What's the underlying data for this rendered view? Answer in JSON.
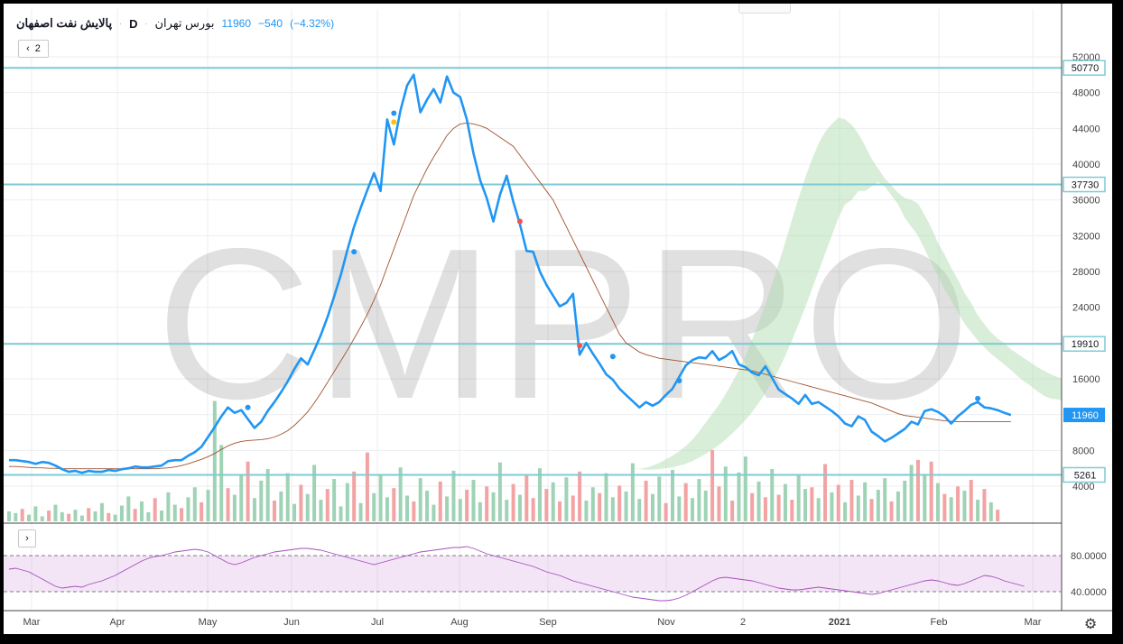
{
  "header": {
    "symbol": "پالایش نفت اصفهان",
    "exchange": "بورس تهران",
    "interval": "D",
    "last": "11960",
    "change": "−540",
    "change_pct": "(−4.32%)",
    "collapse_count": "2"
  },
  "watermark": "CMPRO",
  "colors": {
    "price": "#2196f3",
    "hline": "#7ecbd4",
    "ma": "#a0522d",
    "rsi": "#a64dbf",
    "cloud_up": "#a9d9a9",
    "cloud_down": "#ffb3b3",
    "vol_up": "#9fd3b5",
    "vol_down": "#f2a3a3"
  },
  "chart_data": {
    "type": "line",
    "price_scale": [
      4000,
      8000,
      12000,
      16000,
      20000,
      24000,
      28000,
      32000,
      36000,
      40000,
      44000,
      48000,
      52000
    ],
    "x_labels": [
      "Mar",
      "Apr",
      "May",
      "Jun",
      "Jul",
      "Aug",
      "Sep",
      "Nov",
      "2",
      "2021",
      "Feb",
      "Mar"
    ],
    "horizontal_levels": [
      50770,
      37730,
      19910,
      5261
    ],
    "last_price": 11960,
    "rsi_levels": [
      80,
      40
    ],
    "rsi_level_labels": [
      "80.0000",
      "40.0000"
    ],
    "series": [
      {
        "name": "price",
        "values": [
          6900,
          6900,
          6800,
          6700,
          6500,
          6700,
          6600,
          6300,
          5900,
          5600,
          5700,
          5500,
          5700,
          5600,
          5600,
          5800,
          5700,
          5900,
          6000,
          6200,
          6100,
          6100,
          6200,
          6300,
          6800,
          6900,
          6900,
          7400,
          7800,
          8400,
          9500,
          10600,
          11800,
          12800,
          12200,
          12500,
          11500,
          10500,
          11200,
          12400,
          13400,
          14500,
          15700,
          17100,
          18300,
          17600,
          19200,
          20900,
          22900,
          25200,
          27600,
          30400,
          33000,
          35100,
          37100,
          39000,
          37000,
          45000,
          42200,
          46000,
          48800,
          50000,
          45800,
          47200,
          48400,
          46900,
          49800,
          48000,
          47500,
          45000,
          41200,
          38200,
          36200,
          33600,
          36600,
          38700,
          35800,
          33300,
          30300,
          30200,
          28000,
          26500,
          25300,
          24100,
          24500,
          25500,
          18700,
          20000,
          18800,
          17700,
          16500,
          15900,
          14900,
          14200,
          13500,
          12800,
          13400,
          13000,
          13400,
          14200,
          14900,
          16200,
          17500,
          18100,
          18400,
          18300,
          19100,
          18100,
          18500,
          19100,
          17600,
          17300,
          16700,
          16400,
          17400,
          16100,
          14800,
          14300,
          13800,
          13200,
          14200,
          13200,
          13400,
          12900,
          12400,
          11800,
          11000,
          10700,
          11800,
          11400,
          10100,
          9600,
          9000,
          9400,
          9900,
          10400,
          11200,
          10900,
          12400,
          12600,
          12300,
          11800,
          11000,
          11800,
          12400,
          13100,
          13400,
          12800,
          12700,
          12500,
          12200,
          11960
        ]
      },
      {
        "name": "ma",
        "values": [
          6200,
          6200,
          6150,
          6100,
          6050,
          6050,
          6000,
          6000,
          5950,
          5950,
          5950,
          5950,
          5950,
          5950,
          5950,
          5950,
          5950,
          5950,
          5950,
          5950,
          5950,
          5950,
          5950,
          6000,
          6050,
          6150,
          6300,
          6500,
          6750,
          7000,
          7300,
          7650,
          8100,
          8500,
          8800,
          9000,
          9100,
          9150,
          9200,
          9300,
          9500,
          9800,
          10200,
          10800,
          11500,
          12300,
          13300,
          14400,
          15600,
          16800,
          18000,
          19200,
          20500,
          21800,
          23200,
          24800,
          26500,
          28500,
          30500,
          32500,
          34500,
          36500,
          38000,
          39500,
          40800,
          42000,
          43200,
          44000,
          44500,
          44600,
          44500,
          44300,
          44000,
          43500,
          43000,
          42500,
          42000,
          41000,
          40000,
          39000,
          38000,
          37000,
          36000,
          34500,
          33000,
          31500,
          30000,
          28500,
          27000,
          25500,
          24000,
          22500,
          21000,
          20000,
          19500,
          19000,
          18700,
          18500,
          18300,
          18200,
          18100,
          18000,
          17900,
          17800,
          17700,
          17600,
          17500,
          17400,
          17300,
          17200,
          17100,
          17000,
          16900,
          16700,
          16500,
          16300,
          16100,
          15900,
          15700,
          15500,
          15300,
          15100,
          14900,
          14700,
          14500,
          14300,
          14100,
          13900,
          13700,
          13500,
          13300,
          13000,
          12700,
          12400,
          12100,
          11900,
          11800,
          11700,
          11600,
          11500,
          11400,
          11300,
          11250,
          11200,
          11200,
          11200,
          11200,
          11200,
          11200,
          11200,
          11200,
          11200
        ]
      },
      {
        "name": "rsi",
        "values": [
          65,
          66,
          64,
          62,
          58,
          54,
          50,
          46,
          44,
          45,
          46,
          45,
          48,
          50,
          52,
          55,
          58,
          62,
          66,
          70,
          74,
          77,
          79,
          80,
          82,
          84,
          85,
          86,
          87,
          86,
          84,
          80,
          76,
          72,
          70,
          72,
          75,
          78,
          80,
          82,
          84,
          85,
          86,
          87,
          88,
          88,
          87,
          86,
          84,
          82,
          80,
          78,
          76,
          74,
          72,
          70,
          72,
          74,
          76,
          78,
          80,
          82,
          84,
          85,
          86,
          87,
          88,
          89,
          89,
          90,
          88,
          85,
          82,
          80,
          78,
          76,
          74,
          72,
          70,
          68,
          65,
          62,
          60,
          58,
          55,
          52,
          50,
          48,
          46,
          44,
          42,
          40,
          38,
          36,
          34,
          33,
          32,
          31,
          30,
          30,
          31,
          33,
          36,
          40,
          44,
          48,
          52,
          55,
          56,
          55,
          54,
          53,
          52,
          50,
          48,
          46,
          44,
          43,
          42,
          42,
          43,
          44,
          45,
          44,
          43,
          42,
          41,
          40,
          39,
          38,
          37,
          38,
          40,
          42,
          44,
          46,
          48,
          50,
          52,
          53,
          52,
          50,
          48,
          47,
          49,
          52,
          55,
          58,
          57,
          55,
          52,
          50,
          48,
          46
        ]
      }
    ],
    "volume": [
      [
        1.2,
        1
      ],
      [
        1.0,
        1
      ],
      [
        1.5,
        0
      ],
      [
        0.8,
        1
      ],
      [
        1.8,
        1
      ],
      [
        0.6,
        1
      ],
      [
        1.3,
        0
      ],
      [
        2.0,
        1
      ],
      [
        1.1,
        1
      ],
      [
        0.9,
        0
      ],
      [
        1.4,
        1
      ],
      [
        0.7,
        1
      ],
      [
        1.6,
        0
      ],
      [
        1.2,
        1
      ],
      [
        2.2,
        1
      ],
      [
        1.0,
        0
      ],
      [
        0.8,
        1
      ],
      [
        1.9,
        1
      ],
      [
        3.0,
        1
      ],
      [
        1.5,
        0
      ],
      [
        2.4,
        1
      ],
      [
        1.1,
        1
      ],
      [
        2.8,
        0
      ],
      [
        1.3,
        1
      ],
      [
        3.5,
        1
      ],
      [
        2.0,
        1
      ],
      [
        1.6,
        0
      ],
      [
        2.9,
        1
      ],
      [
        4.1,
        1
      ],
      [
        2.3,
        0
      ],
      [
        3.8,
        1
      ],
      [
        14.5,
        1
      ],
      [
        9.2,
        1
      ],
      [
        4.0,
        0
      ],
      [
        3.2,
        1
      ],
      [
        5.5,
        1
      ],
      [
        7.2,
        0
      ],
      [
        2.8,
        1
      ],
      [
        4.9,
        1
      ],
      [
        6.3,
        1
      ],
      [
        2.5,
        0
      ],
      [
        3.6,
        1
      ],
      [
        5.8,
        1
      ],
      [
        2.1,
        1
      ],
      [
        4.4,
        0
      ],
      [
        3.3,
        1
      ],
      [
        6.8,
        1
      ],
      [
        2.6,
        1
      ],
      [
        3.9,
        0
      ],
      [
        5.1,
        1
      ],
      [
        1.8,
        1
      ],
      [
        4.6,
        1
      ],
      [
        6.0,
        0
      ],
      [
        2.2,
        1
      ],
      [
        8.3,
        0
      ],
      [
        3.4,
        1
      ],
      [
        5.7,
        1
      ],
      [
        2.9,
        1
      ],
      [
        4.0,
        0
      ],
      [
        6.5,
        1
      ],
      [
        3.1,
        1
      ],
      [
        2.4,
        0
      ],
      [
        5.2,
        1
      ],
      [
        3.7,
        1
      ],
      [
        2.0,
        1
      ],
      [
        4.8,
        0
      ],
      [
        3.0,
        1
      ],
      [
        6.1,
        1
      ],
      [
        2.7,
        1
      ],
      [
        3.8,
        0
      ],
      [
        5.0,
        1
      ],
      [
        2.3,
        1
      ],
      [
        4.2,
        0
      ],
      [
        3.5,
        1
      ],
      [
        7.1,
        1
      ],
      [
        2.6,
        1
      ],
      [
        4.5,
        0
      ],
      [
        3.2,
        1
      ],
      [
        5.6,
        0
      ],
      [
        2.8,
        0
      ],
      [
        6.4,
        1
      ],
      [
        3.9,
        0
      ],
      [
        4.7,
        1
      ],
      [
        2.4,
        0
      ],
      [
        5.3,
        1
      ],
      [
        3.1,
        0
      ],
      [
        6.0,
        0
      ],
      [
        2.5,
        1
      ],
      [
        4.1,
        1
      ],
      [
        3.4,
        0
      ],
      [
        5.8,
        1
      ],
      [
        2.9,
        1
      ],
      [
        4.3,
        0
      ],
      [
        3.6,
        1
      ],
      [
        7.0,
        1
      ],
      [
        2.7,
        1
      ],
      [
        4.9,
        0
      ],
      [
        3.3,
        1
      ],
      [
        5.4,
        1
      ],
      [
        2.2,
        0
      ],
      [
        6.2,
        1
      ],
      [
        3.0,
        1
      ],
      [
        4.6,
        0
      ],
      [
        2.8,
        1
      ],
      [
        5.1,
        1
      ],
      [
        3.7,
        1
      ],
      [
        8.6,
        0
      ],
      [
        4.2,
        0
      ],
      [
        6.6,
        1
      ],
      [
        2.5,
        0
      ],
      [
        5.9,
        1
      ],
      [
        7.8,
        1
      ],
      [
        3.4,
        0
      ],
      [
        4.8,
        1
      ],
      [
        2.9,
        0
      ],
      [
        6.3,
        1
      ],
      [
        3.2,
        0
      ],
      [
        4.5,
        1
      ],
      [
        2.6,
        0
      ],
      [
        5.7,
        1
      ],
      [
        3.9,
        1
      ],
      [
        4.1,
        0
      ],
      [
        2.8,
        1
      ],
      [
        6.9,
        0
      ],
      [
        3.5,
        1
      ],
      [
        4.4,
        0
      ],
      [
        2.3,
        1
      ],
      [
        5.0,
        0
      ],
      [
        3.1,
        1
      ],
      [
        4.7,
        1
      ],
      [
        2.7,
        0
      ],
      [
        3.8,
        1
      ],
      [
        5.2,
        1
      ],
      [
        2.4,
        0
      ],
      [
        3.6,
        1
      ],
      [
        4.9,
        1
      ],
      [
        6.8,
        1
      ],
      [
        7.4,
        0
      ],
      [
        5.5,
        1
      ],
      [
        7.2,
        0
      ],
      [
        4.6,
        1
      ],
      [
        3.3,
        0
      ],
      [
        2.9,
        1
      ],
      [
        4.2,
        0
      ],
      [
        3.7,
        1
      ],
      [
        5.0,
        0
      ],
      [
        2.6,
        1
      ],
      [
        3.9,
        0
      ],
      [
        2.3,
        1
      ],
      [
        1.4,
        0
      ]
    ],
    "cloud": {
      "start": 89,
      "top": [
        5950,
        5950,
        5950,
        5950,
        5950,
        5950,
        5950,
        6050,
        6300,
        6600,
        7000,
        7400,
        7900,
        8500,
        9200,
        10100,
        11100,
        12100,
        13100,
        14300,
        15600,
        17000,
        18600,
        20400,
        22300,
        24400,
        26600,
        28900,
        31300,
        33800,
        36200,
        38500,
        40500,
        42300,
        43600,
        44500,
        45200,
        45000,
        44400,
        43400,
        42100,
        40600,
        39500,
        38400,
        37600,
        36800,
        36200,
        36000,
        35600,
        34300,
        32900,
        31200,
        29900,
        28400,
        27100,
        25600,
        24500,
        23100,
        22100,
        21200,
        20500,
        20000,
        19300,
        18800,
        18300,
        17800,
        17300,
        16900,
        16500,
        16200,
        16000,
        15700,
        15400,
        15100,
        14900,
        14600,
        14400,
        14200,
        13900,
        13700,
        13500,
        13400,
        13300
      ],
      "bot": [
        5950,
        5950,
        5950,
        5950,
        5950,
        5950,
        5900,
        5850,
        5850,
        5900,
        6000,
        6100,
        6300,
        6500,
        6800,
        7200,
        7600,
        8100,
        8600,
        9200,
        9900,
        10600,
        11400,
        12300,
        13300,
        14400,
        15700,
        17000,
        18600,
        20300,
        22100,
        24000,
        26000,
        28000,
        30000,
        32000,
        34000,
        35500,
        36000,
        37000,
        37000,
        37500,
        38000,
        37500,
        36500,
        35500,
        34000,
        33000,
        32000,
        30500,
        29000,
        27500,
        26000,
        24800,
        23400,
        22200,
        21200,
        20300,
        19500,
        18800,
        18200,
        17600,
        17000,
        16300,
        15700,
        15200,
        14600,
        14100,
        13800,
        13700,
        13500,
        13300,
        13100,
        12900,
        12800,
        12700,
        12400,
        12200,
        12000,
        12000,
        11800,
        11600,
        11500
      ]
    },
    "markers": [
      {
        "i": 36,
        "v": 12800,
        "color": "#2196f3"
      },
      {
        "i": 52,
        "v": 30200,
        "color": "#2196f3"
      },
      {
        "i": 58,
        "v": 45700,
        "color": "#2196f3"
      },
      {
        "i": 58,
        "v": 44700,
        "color": "#ffc107"
      },
      {
        "i": 77,
        "v": 33600,
        "color": "#ef5350"
      },
      {
        "i": 86,
        "v": 19700,
        "color": "#ef5350"
      },
      {
        "i": 91,
        "v": 18500,
        "color": "#2196f3"
      },
      {
        "i": 101,
        "v": 15800,
        "color": "#2196f3"
      },
      {
        "i": 146,
        "v": 13800,
        "color": "#2196f3"
      }
    ]
  }
}
